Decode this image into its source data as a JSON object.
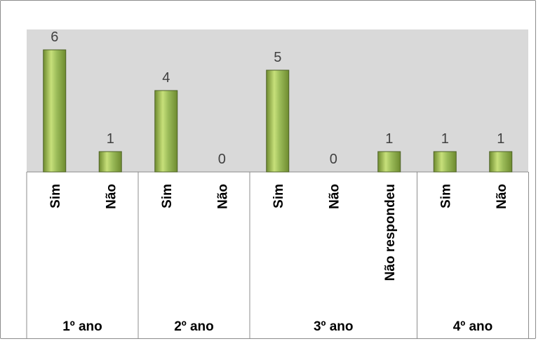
{
  "chart_data": {
    "type": "bar",
    "groups": [
      {
        "label": "1º ano",
        "categories": [
          "Sim",
          "Não"
        ],
        "values": [
          6,
          1
        ]
      },
      {
        "label": "2º ano",
        "categories": [
          "Sim",
          "Não"
        ],
        "values": [
          4,
          0
        ]
      },
      {
        "label": "3º ano",
        "categories": [
          "Sim",
          "Não",
          "Não respondeu"
        ],
        "values": [
          5,
          0,
          1
        ]
      },
      {
        "label": "4º ano",
        "categories": [
          "Sim",
          "Não"
        ],
        "values": [
          1,
          1
        ]
      }
    ],
    "ylim": [
      0,
      7
    ],
    "grid": false,
    "legend": "none",
    "colors": {
      "plot_background": "#d9d9d9",
      "bar_light": "#c7e07a",
      "bar_mid": "#9bbb59",
      "bar_dark": "#6e8b2f",
      "bar_edge": "#4f6228"
    }
  }
}
